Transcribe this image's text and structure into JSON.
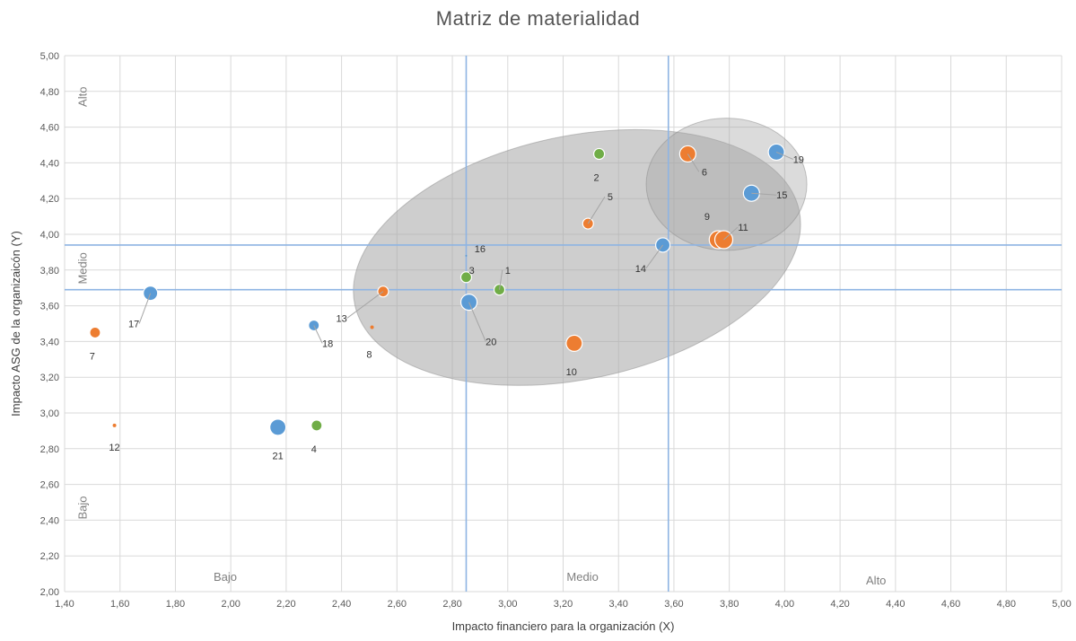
{
  "chart_data": {
    "type": "scatter",
    "title": "Matriz de materialidad",
    "xlabel": "Impacto financiero para la organización (X)",
    "ylabel": "Impacto ASG de la organizaicón (Y)",
    "xlim": [
      1.4,
      5.0
    ],
    "ylim": [
      2.0,
      5.0
    ],
    "x_ticks": [
      "1,40",
      "1,60",
      "1,80",
      "2,00",
      "2,20",
      "2,40",
      "2,60",
      "2,80",
      "3,00",
      "3,20",
      "3,40",
      "3,60",
      "3,80",
      "4,00",
      "4,20",
      "4,40",
      "4,60",
      "4,80",
      "5,00"
    ],
    "y_ticks": [
      "2,00",
      "2,20",
      "2,40",
      "2,60",
      "2,80",
      "3,00",
      "3,20",
      "3,40",
      "3,60",
      "3,80",
      "4,00",
      "4,20",
      "4,40",
      "4,60",
      "4,80",
      "5,00"
    ],
    "grid": true,
    "threshold_lines": {
      "x": [
        2.85,
        3.58
      ],
      "y": [
        3.69,
        3.94
      ]
    },
    "zone_labels": {
      "x_bajo": "Bajo",
      "x_medio": "Medio",
      "x_alto": "Alto",
      "y_alto": "Alto",
      "y_medio": "Medio",
      "y_bajo": "Bajo"
    },
    "colors": {
      "blue": "#5b9bd5",
      "orange": "#ed7d31",
      "green": "#70ad47",
      "ellipse": "#a6a6a6",
      "grid": "#d9d9d9",
      "threshold": "#8eb4e3"
    },
    "highlight_regions": [
      {
        "cx": 3.25,
        "cy": 3.87,
        "rx": 0.82,
        "ry": 0.68,
        "rotate": -12,
        "opacity": 0.55
      },
      {
        "cx": 3.79,
        "cy": 4.28,
        "rx": 0.29,
        "ry": 0.37,
        "rotate": 0,
        "opacity": 0.4
      }
    ],
    "points": [
      {
        "label": "1",
        "x": 2.97,
        "y": 3.69,
        "size": 6,
        "color": "green",
        "lx": 3.0,
        "ly": 3.78,
        "lead": true
      },
      {
        "label": "2",
        "x": 3.33,
        "y": 4.45,
        "size": 6,
        "color": "green",
        "lx": 3.32,
        "ly": 4.3,
        "lead": false
      },
      {
        "label": "3",
        "x": 2.85,
        "y": 3.76,
        "size": 6,
        "color": "green",
        "lx": 2.87,
        "ly": 3.78,
        "lead": false
      },
      {
        "label": "4",
        "x": 2.31,
        "y": 2.93,
        "size": 6,
        "color": "green",
        "lx": 2.3,
        "ly": 2.78,
        "lead": false
      },
      {
        "label": "5",
        "x": 3.29,
        "y": 4.06,
        "size": 6,
        "color": "orange",
        "lx": 3.37,
        "ly": 4.19,
        "lead": true
      },
      {
        "label": "6",
        "x": 3.65,
        "y": 4.45,
        "size": 9,
        "color": "orange",
        "lx": 3.71,
        "ly": 4.33,
        "lead": true
      },
      {
        "label": "7",
        "x": 1.51,
        "y": 3.45,
        "size": 6,
        "color": "orange",
        "lx": 1.5,
        "ly": 3.3,
        "lead": false
      },
      {
        "label": "8",
        "x": 2.51,
        "y": 3.48,
        "size": 2,
        "color": "orange",
        "lx": 2.5,
        "ly": 3.31,
        "lead": false
      },
      {
        "label": "9",
        "x": 3.76,
        "y": 3.97,
        "size": 10,
        "color": "orange",
        "lx": 3.72,
        "ly": 4.08,
        "lead": false
      },
      {
        "label": "10",
        "x": 3.24,
        "y": 3.39,
        "size": 9,
        "color": "orange",
        "lx": 3.23,
        "ly": 3.21,
        "lead": false
      },
      {
        "label": "11",
        "x": 3.78,
        "y": 3.97,
        "size": 10,
        "color": "orange",
        "lx": 3.85,
        "ly": 4.02,
        "lead": true
      },
      {
        "label": "12",
        "x": 1.58,
        "y": 2.93,
        "size": 2,
        "color": "orange",
        "lx": 1.58,
        "ly": 2.79,
        "lead": false
      },
      {
        "label": "13",
        "x": 2.55,
        "y": 3.68,
        "size": 6,
        "color": "orange",
        "lx": 2.4,
        "ly": 3.51,
        "lead": true
      },
      {
        "label": "14",
        "x": 3.56,
        "y": 3.94,
        "size": 8,
        "color": "blue",
        "lx": 3.48,
        "ly": 3.79,
        "lead": true
      },
      {
        "label": "15",
        "x": 3.88,
        "y": 4.23,
        "size": 9,
        "color": "blue",
        "lx": 3.99,
        "ly": 4.2,
        "lead": true
      },
      {
        "label": "16",
        "x": 2.85,
        "y": 3.88,
        "size": 1,
        "color": "blue",
        "lx": 2.9,
        "ly": 3.9,
        "lead": false
      },
      {
        "label": "17",
        "x": 1.71,
        "y": 3.67,
        "size": 8,
        "color": "blue",
        "lx": 1.65,
        "ly": 3.48,
        "lead": true
      },
      {
        "label": "18",
        "x": 2.3,
        "y": 3.49,
        "size": 6,
        "color": "blue",
        "lx": 2.35,
        "ly": 3.37,
        "lead": true
      },
      {
        "label": "19",
        "x": 3.97,
        "y": 4.46,
        "size": 9,
        "color": "blue",
        "lx": 4.05,
        "ly": 4.4,
        "lead": true
      },
      {
        "label": "20",
        "x": 2.86,
        "y": 3.62,
        "size": 9,
        "color": "blue",
        "lx": 2.94,
        "ly": 3.38,
        "lead": true
      },
      {
        "label": "21",
        "x": 2.17,
        "y": 2.92,
        "size": 9,
        "color": "blue",
        "lx": 2.17,
        "ly": 2.74,
        "lead": false
      }
    ]
  }
}
